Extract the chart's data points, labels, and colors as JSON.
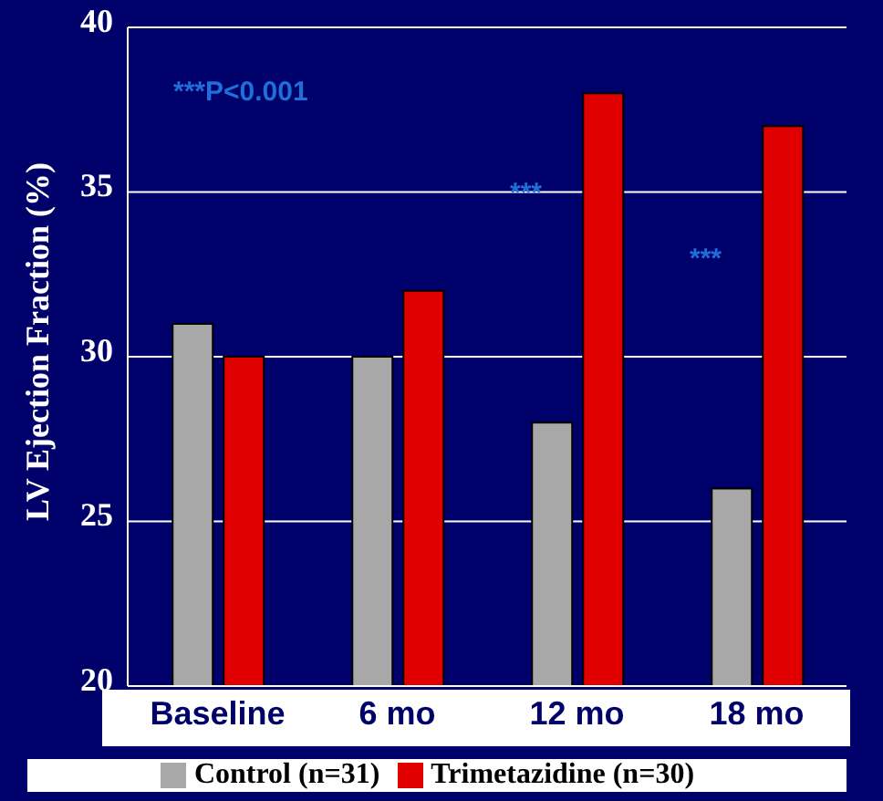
{
  "chart_data": {
    "type": "bar",
    "ylabel": "LV Ejection Fraction (%)",
    "categories": [
      "Baseline",
      "6 mo",
      "12 mo",
      "18 mo"
    ],
    "series": [
      {
        "name": "Control (n=31)",
        "color": "#a8a8a8",
        "values": [
          31,
          30,
          28,
          26
        ]
      },
      {
        "name": "Trimetazidine (n=30)",
        "color": "#e00000",
        "values": [
          30,
          32,
          38,
          37
        ]
      }
    ],
    "ylim": [
      20,
      40
    ],
    "yticks": [
      20,
      25,
      30,
      35,
      40
    ],
    "grid": "y",
    "legend": "bottom",
    "annotations": [
      "***P<0.001",
      {
        "text": "***",
        "x": "12 mo",
        "y": 35
      },
      {
        "text": "***",
        "x": "18 mo",
        "y": 33
      }
    ]
  }
}
